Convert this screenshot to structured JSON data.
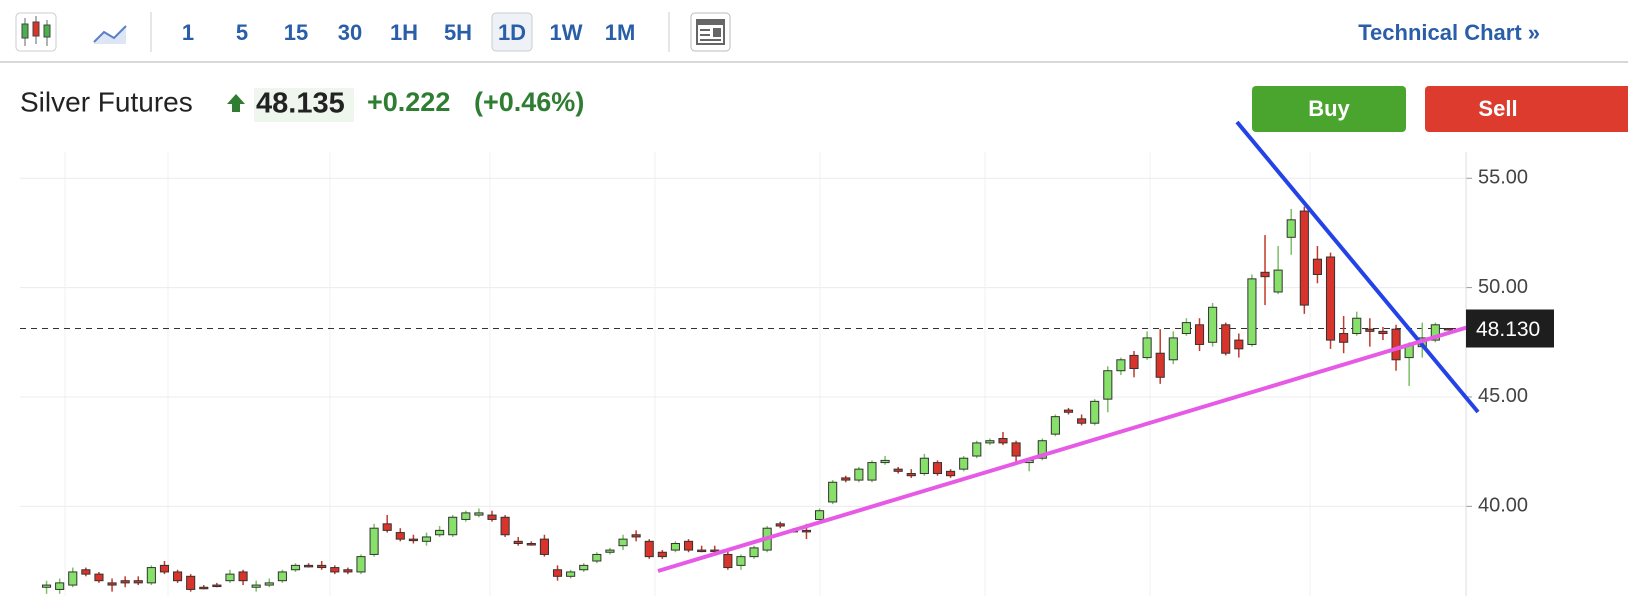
{
  "toolbar": {
    "intervals": [
      "1",
      "5",
      "15",
      "30",
      "1H",
      "5H",
      "1D",
      "1W",
      "1M"
    ],
    "active": "1D",
    "link": "Technical Chart »"
  },
  "quote": {
    "name": "Silver Futures",
    "price": "48.135",
    "change": "+0.222",
    "change_pct": "(+0.46%)"
  },
  "buttons": {
    "buy": "Buy",
    "sell": "Sell"
  },
  "chart_data": {
    "type": "candlestick",
    "up_color": "#86e06a",
    "down_color": "#d9342b",
    "ylim": [
      35.9,
      56.2
    ],
    "yticks": [
      {
        "value": 55,
        "label": "55.00"
      },
      {
        "value": 50,
        "label": "50.00"
      },
      {
        "value": 45,
        "label": "45.00"
      },
      {
        "value": 40,
        "label": "40.00"
      }
    ],
    "last_price": {
      "value": 48.13,
      "label": "48.130"
    },
    "candles": [
      [
        36.3,
        36.6,
        36.0,
        36.4
      ],
      [
        36.2,
        36.7,
        36.0,
        36.5
      ],
      [
        36.4,
        37.2,
        36.3,
        37.0
      ],
      [
        37.1,
        37.2,
        36.8,
        36.9
      ],
      [
        36.9,
        37.0,
        36.5,
        36.6
      ],
      [
        36.5,
        36.7,
        36.1,
        36.4
      ],
      [
        36.6,
        36.8,
        36.3,
        36.5
      ],
      [
        36.6,
        36.8,
        36.4,
        36.5
      ],
      [
        36.5,
        37.3,
        36.4,
        37.2
      ],
      [
        37.3,
        37.5,
        36.9,
        37.0
      ],
      [
        37.0,
        37.1,
        36.5,
        36.6
      ],
      [
        36.8,
        36.9,
        36.1,
        36.2
      ],
      [
        36.3,
        36.4,
        36.2,
        36.3
      ],
      [
        36.4,
        36.5,
        36.3,
        36.4
      ],
      [
        36.6,
        37.1,
        36.5,
        36.9
      ],
      [
        37.0,
        37.1,
        36.4,
        36.6
      ],
      [
        36.3,
        36.6,
        36.1,
        36.4
      ],
      [
        36.4,
        36.7,
        36.3,
        36.5
      ],
      [
        36.6,
        37.1,
        36.5,
        37.0
      ],
      [
        37.1,
        37.4,
        37.0,
        37.3
      ],
      [
        37.3,
        37.4,
        37.2,
        37.3
      ],
      [
        37.3,
        37.5,
        37.1,
        37.2
      ],
      [
        37.2,
        37.3,
        36.9,
        37.0
      ],
      [
        37.1,
        37.2,
        36.9,
        37.0
      ],
      [
        37.0,
        37.8,
        36.9,
        37.7
      ],
      [
        37.8,
        39.2,
        37.7,
        39.0
      ],
      [
        39.2,
        39.6,
        38.8,
        38.9
      ],
      [
        38.8,
        39.0,
        38.4,
        38.5
      ],
      [
        38.5,
        38.7,
        38.3,
        38.5
      ],
      [
        38.4,
        38.8,
        38.2,
        38.6
      ],
      [
        38.7,
        39.1,
        38.6,
        38.9
      ],
      [
        38.7,
        39.6,
        38.6,
        39.5
      ],
      [
        39.4,
        39.8,
        39.3,
        39.7
      ],
      [
        39.6,
        39.9,
        39.5,
        39.7
      ],
      [
        39.6,
        39.8,
        39.3,
        39.4
      ],
      [
        39.5,
        39.6,
        38.6,
        38.7
      ],
      [
        38.4,
        38.6,
        38.2,
        38.3
      ],
      [
        38.3,
        38.4,
        38.2,
        38.3
      ],
      [
        38.5,
        38.7,
        37.7,
        37.8
      ],
      [
        37.1,
        37.3,
        36.6,
        36.8
      ],
      [
        36.8,
        37.1,
        36.7,
        37.0
      ],
      [
        37.1,
        37.4,
        37.0,
        37.3
      ],
      [
        37.5,
        37.9,
        37.4,
        37.8
      ],
      [
        37.9,
        38.1,
        37.8,
        38.0
      ],
      [
        38.2,
        38.7,
        38.0,
        38.5
      ],
      [
        38.7,
        38.9,
        38.4,
        38.6
      ],
      [
        38.4,
        38.5,
        37.6,
        37.7
      ],
      [
        37.9,
        38.0,
        37.6,
        37.7
      ],
      [
        38.0,
        38.4,
        37.9,
        38.3
      ],
      [
        38.4,
        38.5,
        37.9,
        38.0
      ],
      [
        38.0,
        38.2,
        37.9,
        38.0
      ],
      [
        38.0,
        38.2,
        37.8,
        38.0
      ],
      [
        37.8,
        38.0,
        37.1,
        37.2
      ],
      [
        37.3,
        37.8,
        37.1,
        37.7
      ],
      [
        37.7,
        38.2,
        37.6,
        38.1
      ],
      [
        38.0,
        39.1,
        37.9,
        39.0
      ],
      [
        39.2,
        39.3,
        39.0,
        39.1
      ],
      [
        38.9,
        39.0,
        38.8,
        38.9
      ],
      [
        38.9,
        39.2,
        38.5,
        38.9
      ],
      [
        39.4,
        39.9,
        39.3,
        39.8
      ],
      [
        40.2,
        41.2,
        40.1,
        41.1
      ],
      [
        41.3,
        41.4,
        41.1,
        41.2
      ],
      [
        41.2,
        41.8,
        41.1,
        41.7
      ],
      [
        41.2,
        42.1,
        41.1,
        42.0
      ],
      [
        42.0,
        42.3,
        41.9,
        42.1
      ],
      [
        41.7,
        41.8,
        41.5,
        41.6
      ],
      [
        41.5,
        41.7,
        41.3,
        41.4
      ],
      [
        41.5,
        42.4,
        41.4,
        42.2
      ],
      [
        42.0,
        42.1,
        41.4,
        41.5
      ],
      [
        41.6,
        41.7,
        41.3,
        41.4
      ],
      [
        41.7,
        42.3,
        41.6,
        42.2
      ],
      [
        42.3,
        43.0,
        42.2,
        42.9
      ],
      [
        42.9,
        43.1,
        42.8,
        43.0
      ],
      [
        43.1,
        43.4,
        42.8,
        42.9
      ],
      [
        42.9,
        43.0,
        42.0,
        42.3
      ],
      [
        42.0,
        42.2,
        41.6,
        42.1
      ],
      [
        42.2,
        43.1,
        42.1,
        43.0
      ],
      [
        43.3,
        44.2,
        43.2,
        44.1
      ],
      [
        44.4,
        44.5,
        44.2,
        44.3
      ],
      [
        44.0,
        44.2,
        43.7,
        43.8
      ],
      [
        43.8,
        44.9,
        43.7,
        44.8
      ],
      [
        44.9,
        46.4,
        44.3,
        46.2
      ],
      [
        46.2,
        46.8,
        46.0,
        46.7
      ],
      [
        46.9,
        47.1,
        45.9,
        46.3
      ],
      [
        46.8,
        48.0,
        46.7,
        47.7
      ],
      [
        47.0,
        48.1,
        45.6,
        45.9
      ],
      [
        46.7,
        48.0,
        46.5,
        47.7
      ],
      [
        47.9,
        48.6,
        47.8,
        48.4
      ],
      [
        48.3,
        48.6,
        47.1,
        47.4
      ],
      [
        47.5,
        49.3,
        47.3,
        49.1
      ],
      [
        48.3,
        48.4,
        46.9,
        47.0
      ],
      [
        47.6,
        47.9,
        46.8,
        47.2
      ],
      [
        47.4,
        50.6,
        47.3,
        50.4
      ],
      [
        50.7,
        52.4,
        49.2,
        50.5
      ],
      [
        49.8,
        51.9,
        49.7,
        50.8
      ],
      [
        52.3,
        53.6,
        51.5,
        53.1
      ],
      [
        53.5,
        53.7,
        48.8,
        49.2
      ],
      [
        51.3,
        51.9,
        50.2,
        50.6
      ],
      [
        51.4,
        51.6,
        47.2,
        47.6
      ],
      [
        47.9,
        48.7,
        47.0,
        47.5
      ],
      [
        47.9,
        48.9,
        47.8,
        48.6
      ],
      [
        48.1,
        48.6,
        47.3,
        48.0
      ],
      [
        48.0,
        48.2,
        47.6,
        47.9
      ],
      [
        48.1,
        48.3,
        46.2,
        46.7
      ],
      [
        46.8,
        47.5,
        45.5,
        47.4
      ],
      [
        47.3,
        48.4,
        46.8,
        47.7
      ],
      [
        47.6,
        48.4,
        47.5,
        48.3
      ],
      [
        48.13,
        48.13,
        48.13,
        48.13
      ]
    ]
  }
}
